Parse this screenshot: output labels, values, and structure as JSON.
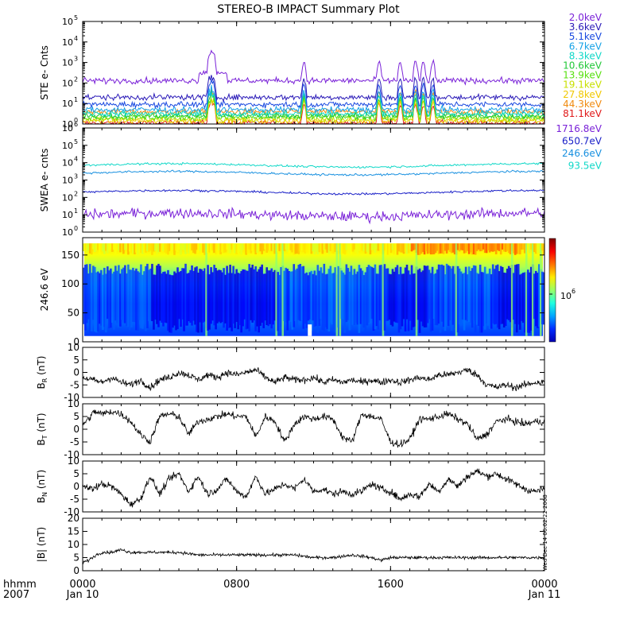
{
  "title": "STEREO-B IMPACT Summary Plot",
  "time_axis": {
    "left_labels": [
      "hhmm",
      "2007"
    ],
    "ticks": [
      {
        "label": "0000",
        "date": "Jan 10",
        "hour": 0
      },
      {
        "label": "0800",
        "date": "",
        "hour": 8
      },
      {
        "label": "1600",
        "date": "",
        "hour": 16
      },
      {
        "label": "0000",
        "date": "Jan 11",
        "hour": 24
      }
    ],
    "range_hours": [
      0,
      24
    ]
  },
  "side_stamp": "Wed Dec 14 06:02:22 2008",
  "chart_data": [
    {
      "id": "ste",
      "type": "line",
      "ylabel": "STE e- Cnts",
      "yscale": "log",
      "ylim": [
        1,
        100000
      ],
      "yticks": [
        {
          "label": "10",
          "exp": "0",
          "v": 1
        },
        {
          "label": "10",
          "exp": "1",
          "v": 10
        },
        {
          "label": "10",
          "exp": "2",
          "v": 100
        },
        {
          "label": "10",
          "exp": "3",
          "v": 1000
        },
        {
          "label": "10",
          "exp": "4",
          "v": 10000
        },
        {
          "label": "10",
          "exp": "5",
          "v": 100000
        }
      ],
      "series": [
        {
          "name": "2.0keV",
          "color": "#7a22d8",
          "base": 130
        },
        {
          "name": "3.6keV",
          "color": "#2a1ab8",
          "base": 20
        },
        {
          "name": "5.1keV",
          "color": "#1848e0",
          "base": 9
        },
        {
          "name": "6.7keV",
          "color": "#16a2e6",
          "base": 5
        },
        {
          "name": "8.3keV",
          "color": "#10d8c8",
          "base": 3.2
        },
        {
          "name": "10.6keV",
          "color": "#22c838",
          "base": 2.6
        },
        {
          "name": "13.9keV",
          "color": "#58e010",
          "base": 2.1
        },
        {
          "name": "19.1keV",
          "color": "#c8e000",
          "base": 1.7
        },
        {
          "name": "27.8keV",
          "color": "#f0c800",
          "base": 1.4
        },
        {
          "name": "44.3keV",
          "color": "#f08a10",
          "base": 3.9
        },
        {
          "name": "81.1keV",
          "color": "#e01818",
          "base": 1.1
        }
      ],
      "spikes_hour": [
        6.6,
        6.8,
        11.5,
        15.4,
        16.5,
        17.3,
        17.7,
        18.2
      ]
    },
    {
      "id": "swea",
      "type": "line",
      "ylabel": "SWEA e- cnts",
      "yscale": "log",
      "ylim": [
        1,
        1000000
      ],
      "yticks": [
        {
          "label": "10",
          "exp": "0",
          "v": 1
        },
        {
          "label": "10",
          "exp": "1",
          "v": 10
        },
        {
          "label": "10",
          "exp": "2",
          "v": 100
        },
        {
          "label": "10",
          "exp": "3",
          "v": 1000
        },
        {
          "label": "10",
          "exp": "4",
          "v": 10000
        },
        {
          "label": "10",
          "exp": "5",
          "v": 100000
        },
        {
          "label": "10",
          "exp": "6",
          "v": 1000000
        }
      ],
      "series": [
        {
          "name": "1716.8eV",
          "color": "#7a22d8",
          "base": 10
        },
        {
          "name": "650.7eV",
          "color": "#1a20c8",
          "base": 200
        },
        {
          "name": "246.6eV",
          "color": "#1890e0",
          "base": 2500
        },
        {
          "name": "93.5eV",
          "color": "#10d8c8",
          "base": 7000
        }
      ]
    },
    {
      "id": "pitch",
      "type": "heatmap",
      "ylabel": "246.6 eV",
      "ylim": [
        0,
        180
      ],
      "yticks": [
        0,
        50,
        100,
        150
      ],
      "colorbar_label": "10",
      "colorbar_exp": "6"
    },
    {
      "id": "br",
      "type": "line",
      "ylabel": "B",
      "ylabel_sub": "R",
      "ylabel_unit": "(nT)",
      "ylim": [
        -10,
        10
      ],
      "yticks": [
        -10,
        -5,
        0,
        5,
        10
      ],
      "color": "#000000",
      "points": [
        [
          0,
          -2
        ],
        [
          0.5,
          -3
        ],
        [
          1,
          -4
        ],
        [
          1.5,
          -2
        ],
        [
          2,
          -4
        ],
        [
          2.5,
          -5
        ],
        [
          3,
          -3
        ],
        [
          3.5,
          -6
        ],
        [
          4,
          -3
        ],
        [
          4.5,
          -2
        ],
        [
          5,
          0
        ],
        [
          5.5,
          -1
        ],
        [
          6,
          -3
        ],
        [
          6.5,
          -1
        ],
        [
          7,
          -2
        ],
        [
          7.5,
          0
        ],
        [
          8,
          -1
        ],
        [
          8.5,
          0
        ],
        [
          9,
          1
        ],
        [
          9.5,
          -2
        ],
        [
          10,
          -4
        ],
        [
          10.5,
          -2
        ],
        [
          11,
          -3
        ],
        [
          11.5,
          -3
        ],
        [
          12,
          -2
        ],
        [
          12.5,
          -4
        ],
        [
          13,
          -3
        ],
        [
          13.5,
          -4
        ],
        [
          14,
          -3
        ],
        [
          14.5,
          -4
        ],
        [
          15,
          -3
        ],
        [
          15.5,
          -4
        ],
        [
          16,
          -3
        ],
        [
          16.5,
          -4
        ],
        [
          17,
          -3
        ],
        [
          17.5,
          -2
        ],
        [
          18,
          -3
        ],
        [
          18.5,
          -1
        ],
        [
          19,
          -1
        ],
        [
          19.5,
          0
        ],
        [
          20,
          1
        ],
        [
          20.5,
          -1
        ],
        [
          21,
          -5
        ],
        [
          21.5,
          -6
        ],
        [
          22,
          -5
        ],
        [
          22.5,
          -6
        ],
        [
          23,
          -5
        ],
        [
          23.5,
          -4
        ],
        [
          24,
          -4
        ]
      ]
    },
    {
      "id": "bt",
      "type": "line",
      "ylabel": "B",
      "ylabel_sub": "T",
      "ylabel_unit": "(nT)",
      "ylim": [
        -10,
        10
      ],
      "yticks": [
        -10,
        -5,
        0,
        5,
        10
      ],
      "color": "#000000",
      "points": [
        [
          0,
          2
        ],
        [
          0.3,
          4
        ],
        [
          0.6,
          7
        ],
        [
          1,
          6
        ],
        [
          1.5,
          7
        ],
        [
          2,
          6
        ],
        [
          2.5,
          3
        ],
        [
          3,
          -2
        ],
        [
          3.5,
          -5
        ],
        [
          4,
          5
        ],
        [
          4.5,
          6
        ],
        [
          5,
          5
        ],
        [
          5.5,
          -2
        ],
        [
          6,
          3
        ],
        [
          6.5,
          4
        ],
        [
          7,
          5
        ],
        [
          7.5,
          6
        ],
        [
          8,
          5
        ],
        [
          8.5,
          5
        ],
        [
          9,
          -3
        ],
        [
          9.5,
          5
        ],
        [
          10,
          3
        ],
        [
          10.5,
          -5
        ],
        [
          11,
          2
        ],
        [
          11.5,
          5
        ],
        [
          12,
          4
        ],
        [
          12.5,
          5
        ],
        [
          13,
          4
        ],
        [
          13.5,
          -3
        ],
        [
          14,
          -5
        ],
        [
          14.5,
          6
        ],
        [
          15,
          5
        ],
        [
          15.5,
          4
        ],
        [
          16,
          -5
        ],
        [
          16.5,
          -6
        ],
        [
          17,
          -4
        ],
        [
          17.5,
          4
        ],
        [
          18,
          4
        ],
        [
          18.5,
          5
        ],
        [
          19,
          6
        ],
        [
          19.5,
          4
        ],
        [
          20,
          2
        ],
        [
          20.5,
          -4
        ],
        [
          21,
          -2
        ],
        [
          21.5,
          3
        ],
        [
          22,
          4
        ],
        [
          22.5,
          3
        ],
        [
          23,
          2
        ],
        [
          23.5,
          3
        ],
        [
          24,
          3
        ]
      ]
    },
    {
      "id": "bn",
      "type": "line",
      "ylabel": "B",
      "ylabel_sub": "N",
      "ylabel_unit": "(nT)",
      "ylim": [
        -10,
        10
      ],
      "yticks": [
        -10,
        -5,
        0,
        5,
        10
      ],
      "color": "#000000",
      "points": [
        [
          0,
          0
        ],
        [
          0.5,
          -1
        ],
        [
          1,
          1
        ],
        [
          1.5,
          0
        ],
        [
          2,
          -3
        ],
        [
          2.5,
          -7
        ],
        [
          3,
          -5
        ],
        [
          3.5,
          4
        ],
        [
          4,
          -3
        ],
        [
          4.5,
          3
        ],
        [
          5,
          5
        ],
        [
          5.5,
          -2
        ],
        [
          6,
          4
        ],
        [
          6.5,
          -3
        ],
        [
          7,
          -1
        ],
        [
          7.5,
          3
        ],
        [
          8,
          -2
        ],
        [
          8.5,
          -4
        ],
        [
          9,
          4
        ],
        [
          9.5,
          -3
        ],
        [
          10,
          -1
        ],
        [
          10.5,
          1
        ],
        [
          11,
          -1
        ],
        [
          11.5,
          3
        ],
        [
          12,
          -2
        ],
        [
          12.5,
          -1
        ],
        [
          13,
          -3
        ],
        [
          13.5,
          -2
        ],
        [
          14,
          -3
        ],
        [
          14.5,
          -2
        ],
        [
          15,
          1
        ],
        [
          15.5,
          -1
        ],
        [
          16,
          -2
        ],
        [
          16.5,
          -5
        ],
        [
          17,
          -3
        ],
        [
          17.5,
          -4
        ],
        [
          18,
          1
        ],
        [
          18.5,
          -2
        ],
        [
          19,
          3
        ],
        [
          19.5,
          0
        ],
        [
          20,
          4
        ],
        [
          20.5,
          6
        ],
        [
          21,
          4
        ],
        [
          21.5,
          5
        ],
        [
          22,
          3
        ],
        [
          22.5,
          1
        ],
        [
          23,
          -1
        ],
        [
          23.5,
          -2
        ],
        [
          24,
          -1
        ]
      ]
    },
    {
      "id": "bmag",
      "type": "line",
      "ylabel": "|B| (nT)",
      "ylim": [
        0,
        20
      ],
      "yticks": [
        0,
        5,
        10,
        15,
        20
      ],
      "color": "#000000",
      "points": [
        [
          0,
          3
        ],
        [
          0.3,
          4
        ],
        [
          0.7,
          6
        ],
        [
          1,
          7
        ],
        [
          1.5,
          7
        ],
        [
          2,
          8
        ],
        [
          2.5,
          7
        ],
        [
          3,
          7
        ],
        [
          4,
          7
        ],
        [
          5,
          7
        ],
        [
          6,
          6
        ],
        [
          7,
          6
        ],
        [
          8,
          6
        ],
        [
          9,
          6
        ],
        [
          10,
          6
        ],
        [
          11,
          6
        ],
        [
          12,
          5
        ],
        [
          13,
          5
        ],
        [
          14,
          6
        ],
        [
          15,
          5
        ],
        [
          15.5,
          4
        ],
        [
          16,
          5
        ],
        [
          17,
          5
        ],
        [
          18,
          5
        ],
        [
          19,
          5
        ],
        [
          20,
          5
        ],
        [
          21,
          5
        ],
        [
          22,
          5
        ],
        [
          23,
          5
        ],
        [
          24,
          5
        ]
      ]
    }
  ]
}
